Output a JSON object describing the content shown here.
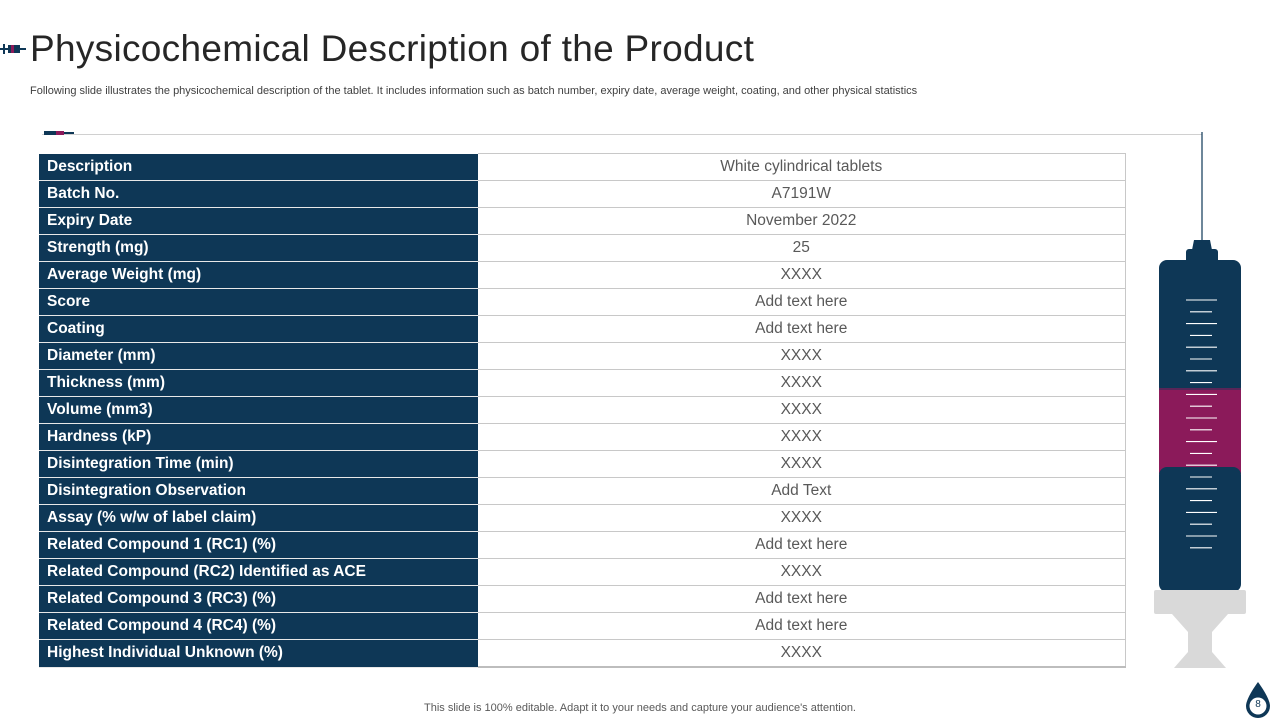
{
  "slide": {
    "title": "Physicochemical Description of the Product",
    "subtitle": "Following slide illustrates the physicochemical description of the tablet. It includes information such as batch number, expiry date, average weight, coating, and other physical statistics",
    "footer": "This slide is 100% editable. Adapt it to your needs and capture your audience's attention.",
    "page_number": "8"
  },
  "colors": {
    "navy": "#0e3756",
    "magenta": "#8b1a5a",
    "grey": "#d9d9d9"
  },
  "table": {
    "rows": [
      {
        "label": "Description",
        "value": "White cylindrical tablets"
      },
      {
        "label": "Batch No.",
        "value": "A7191W"
      },
      {
        "label": "Expiry Date",
        "value": "November 2022"
      },
      {
        "label": "Strength (mg)",
        "value": "25"
      },
      {
        "label": "Average Weight (mg)",
        "value": "XXXX"
      },
      {
        "label": "Score",
        "value": "Add text here"
      },
      {
        "label": "Coating",
        "value": "Add text here"
      },
      {
        "label": "Diameter (mm)",
        "value": "XXXX"
      },
      {
        "label": "Thickness (mm)",
        "value": "XXXX"
      },
      {
        "label": "Volume (mm3)",
        "value": "XXXX"
      },
      {
        "label": "Hardness (kP)",
        "value": "XXXX"
      },
      {
        "label": "Disintegration Time (min)",
        "value": "XXXX"
      },
      {
        "label": "Disintegration Observation",
        "value": "Add Text"
      },
      {
        "label": "Assay (% w/w of label claim)",
        "value": "XXXX"
      },
      {
        "label": "Related Compound 1 (RC1) (%)",
        "value": "Add text here"
      },
      {
        "label": "Related Compound (RC2) Identified as ACE",
        "value": "XXXX"
      },
      {
        "label": "Related Compound 3 (RC3) (%)",
        "value": "Add text here"
      },
      {
        "label": "Related Compound 4 (RC4) (%)",
        "value": "Add text here"
      },
      {
        "label": "Highest Individual Unknown (%)",
        "value": "XXXX"
      }
    ]
  },
  "icons": {
    "title": "syringe-icon",
    "illustration": "syringe-illustration",
    "page_badge": "drop-icon"
  }
}
